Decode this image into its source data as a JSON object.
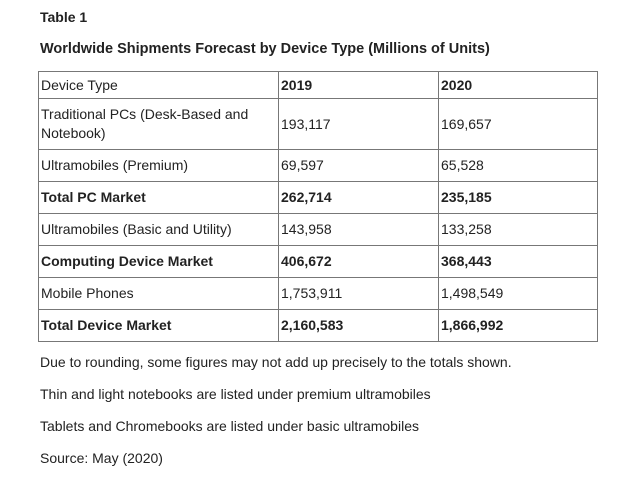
{
  "header": {
    "title": "Table 1",
    "subtitle": "Worldwide Shipments Forecast by Device Type (Millions of Units)"
  },
  "table": {
    "columns": [
      "Device Type",
      "2019",
      "2020"
    ],
    "rows": [
      [
        "Traditional PCs (Desk-Based and Notebook)",
        "193,117",
        "169,657"
      ],
      [
        "Ultramobiles (Premium)",
        "69,597",
        "65,528"
      ],
      [
        "Total PC Market",
        "262,714",
        "235,185"
      ],
      [
        "Ultramobiles (Basic and Utility)",
        "143,958",
        "133,258"
      ],
      [
        "Computing Device Market",
        "406,672",
        "368,443"
      ],
      [
        "Mobile Phones",
        "1,753,911",
        "1,498,549"
      ],
      [
        "Total Device Market",
        "2,160,583",
        "1,866,992"
      ]
    ]
  },
  "notes": [
    "Due to rounding, some figures may not add up precisely to the totals shown.",
    "Thin and light notebooks are listed under premium ultramobiles",
    "Tablets and Chromebooks are listed under basic ultramobiles",
    "Source: May (2020)"
  ]
}
